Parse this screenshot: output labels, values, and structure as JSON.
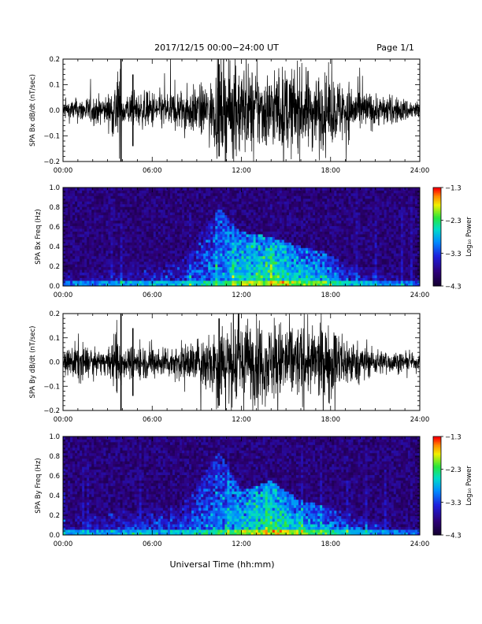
{
  "header": {
    "title": "2017/12/15  00:00−24:00 UT",
    "page": "Page 1/1"
  },
  "footer": {
    "xlabel": "Universal Time (hh:mm)"
  },
  "colors": {
    "trace": "#000000",
    "axis": "#000000"
  },
  "chart_data": [
    {
      "type": "line",
      "ylabel": "SPA Bx dB/dt (nT/sec)",
      "x_range": [
        0,
        24
      ],
      "ylim": [
        -0.2,
        0.2
      ],
      "x_ticks": [
        "00:00",
        "06:00",
        "12:00",
        "18:00",
        "24:00"
      ],
      "y_ticks": [
        "0.2",
        "0.1",
        "0.0",
        "−0.1",
        "−0.2"
      ],
      "series": [
        {
          "x": [
            0,
            1,
            2,
            3,
            3.9,
            4,
            5,
            6,
            7,
            8,
            9,
            10,
            10.5,
            11,
            12,
            13,
            14,
            15,
            16,
            17,
            18,
            19,
            20,
            21,
            22,
            23,
            24
          ],
          "amplitude": [
            0.04,
            0.05,
            0.06,
            0.06,
            0.2,
            0.07,
            0.07,
            0.08,
            0.08,
            0.09,
            0.1,
            0.12,
            0.2,
            0.2,
            0.2,
            0.17,
            0.16,
            0.18,
            0.17,
            0.16,
            0.14,
            0.13,
            0.09,
            0.07,
            0.06,
            0.05,
            0.04
          ]
        }
      ]
    },
    {
      "type": "heatmap",
      "ylabel": "SPA Bx Freq (Hz)",
      "x_range": [
        0,
        24
      ],
      "ylim": [
        0,
        1.0
      ],
      "x_ticks": [
        "00:00",
        "06:00",
        "12:00",
        "18:00",
        "24:00"
      ],
      "y_ticks": [
        "1.0",
        "0.8",
        "0.6",
        "0.4",
        "0.2",
        "0.0"
      ],
      "colorbar": {
        "label": "Log₁₀ Power",
        "ticks": [
          "−1.3",
          "−2.3",
          "−3.3",
          "−4.3"
        ],
        "range": [
          -4.3,
          -1.3
        ]
      },
      "activity": [
        {
          "t": 0,
          "f": 0.15,
          "p": -3.6
        },
        {
          "t": 4,
          "f": 0.2,
          "p": -3.4
        },
        {
          "t": 8,
          "f": 0.25,
          "p": -3.3
        },
        {
          "t": 10.5,
          "f": 0.8,
          "p": -2.9
        },
        {
          "t": 12,
          "f": 0.55,
          "p": -2.5
        },
        {
          "t": 14,
          "f": 0.5,
          "p": -2.3
        },
        {
          "t": 16,
          "f": 0.4,
          "p": -2.6
        },
        {
          "t": 17.5,
          "f": 0.35,
          "p": -2.7
        },
        {
          "t": 19.5,
          "f": 0.2,
          "p": -3.2
        },
        {
          "t": 24,
          "f": 0.1,
          "p": -3.7
        }
      ]
    },
    {
      "type": "line",
      "ylabel": "SPA By dB/dt (nT/sec)",
      "x_range": [
        0,
        24
      ],
      "ylim": [
        -0.2,
        0.2
      ],
      "x_ticks": [
        "00:00",
        "06:00",
        "12:00",
        "18:00",
        "24:00"
      ],
      "y_ticks": [
        "0.2",
        "0.1",
        "0.0",
        "−0.1",
        "−0.2"
      ],
      "series": [
        {
          "x": [
            0,
            1,
            2,
            3,
            3.9,
            4,
            5,
            6,
            7,
            8,
            9,
            10,
            10.5,
            11,
            12,
            13,
            14,
            15,
            16,
            17,
            18,
            19,
            20,
            21,
            22,
            23,
            24
          ],
          "amplitude": [
            0.03,
            0.1,
            0.05,
            0.05,
            0.2,
            0.06,
            0.08,
            0.07,
            0.07,
            0.08,
            0.1,
            0.15,
            0.2,
            0.19,
            0.2,
            0.18,
            0.17,
            0.19,
            0.16,
            0.15,
            0.17,
            0.12,
            0.08,
            0.06,
            0.05,
            0.04,
            0.03
          ]
        }
      ]
    },
    {
      "type": "heatmap",
      "ylabel": "SPA By Freq (Hz)",
      "x_range": [
        0,
        24
      ],
      "ylim": [
        0,
        1.0
      ],
      "x_ticks": [
        "00:00",
        "06:00",
        "12:00",
        "18:00",
        "24:00"
      ],
      "y_ticks": [
        "1.0",
        "0.8",
        "0.6",
        "0.4",
        "0.2",
        "0.0"
      ],
      "colorbar": {
        "label": "Log₁₀ Power",
        "ticks": [
          "−1.3",
          "−2.3",
          "−3.3",
          "−4.3"
        ],
        "range": [
          -4.3,
          -1.3
        ]
      },
      "activity": [
        {
          "t": 0,
          "f": 0.2,
          "p": -3.5
        },
        {
          "t": 4,
          "f": 0.25,
          "p": -3.3
        },
        {
          "t": 8,
          "f": 0.3,
          "p": -3.2
        },
        {
          "t": 10.5,
          "f": 0.85,
          "p": -2.9
        },
        {
          "t": 12,
          "f": 0.45,
          "p": -2.6
        },
        {
          "t": 14,
          "f": 0.55,
          "p": -2.3
        },
        {
          "t": 16,
          "f": 0.35,
          "p": -2.6
        },
        {
          "t": 17.5,
          "f": 0.3,
          "p": -2.8
        },
        {
          "t": 19.5,
          "f": 0.2,
          "p": -3.2
        },
        {
          "t": 24,
          "f": 0.1,
          "p": -3.7
        }
      ]
    }
  ]
}
